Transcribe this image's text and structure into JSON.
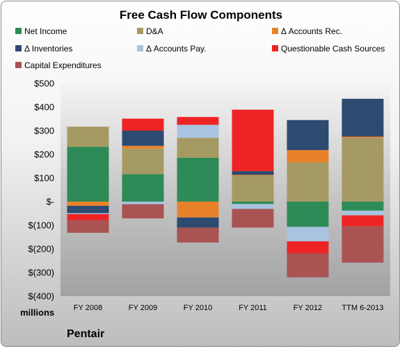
{
  "chart_data": {
    "type": "bar",
    "stacked": true,
    "title": "Free Cash Flow Components",
    "unit_label": "millions",
    "company": "Pentair",
    "ylim": [
      -400,
      500
    ],
    "yticks": [
      500,
      400,
      300,
      200,
      100,
      0,
      -100,
      -200,
      -300,
      -400
    ],
    "ytick_labels": [
      "$500",
      "$400",
      "$300",
      "$200",
      "$100",
      "$-",
      "$(100)",
      "$(200)",
      "$(300)",
      "$(400)"
    ],
    "grid": false,
    "legend": "top",
    "categories": [
      "FY 2008",
      "FY 2009",
      "FY 2010",
      "FY 2011",
      "FY 2012",
      "TTM 6-2013"
    ],
    "series": [
      {
        "name": "Net Income",
        "color": "#2e8b57",
        "values": [
          232,
          116,
          186,
          -10,
          -107,
          -38
        ]
      },
      {
        "name": "D&A",
        "color": "#a69a63",
        "values": [
          85,
          108,
          84,
          110,
          166,
          270
        ]
      },
      {
        "name": "Δ Accounts Rec.",
        "color": "#e8822a",
        "values": [
          -18,
          12,
          -67,
          3,
          52,
          5
        ]
      },
      {
        "name": "Δ Inventories",
        "color": "#2d4a70",
        "values": [
          -31,
          64,
          -43,
          16,
          127,
          160
        ]
      },
      {
        "name": "Δ Accounts Pay.",
        "color": "#a8c4e0",
        "values": [
          -4,
          -11,
          55,
          -21,
          -61,
          -20
        ]
      },
      {
        "name": "Questionable Cash Sources",
        "color": "#ee2424",
        "values": [
          -26,
          51,
          33,
          260,
          -51,
          -46
        ]
      },
      {
        "name": "Capital Expenditures",
        "color": "#a95353",
        "values": [
          -53,
          -60,
          -63,
          -79,
          -101,
          -154
        ]
      }
    ]
  }
}
